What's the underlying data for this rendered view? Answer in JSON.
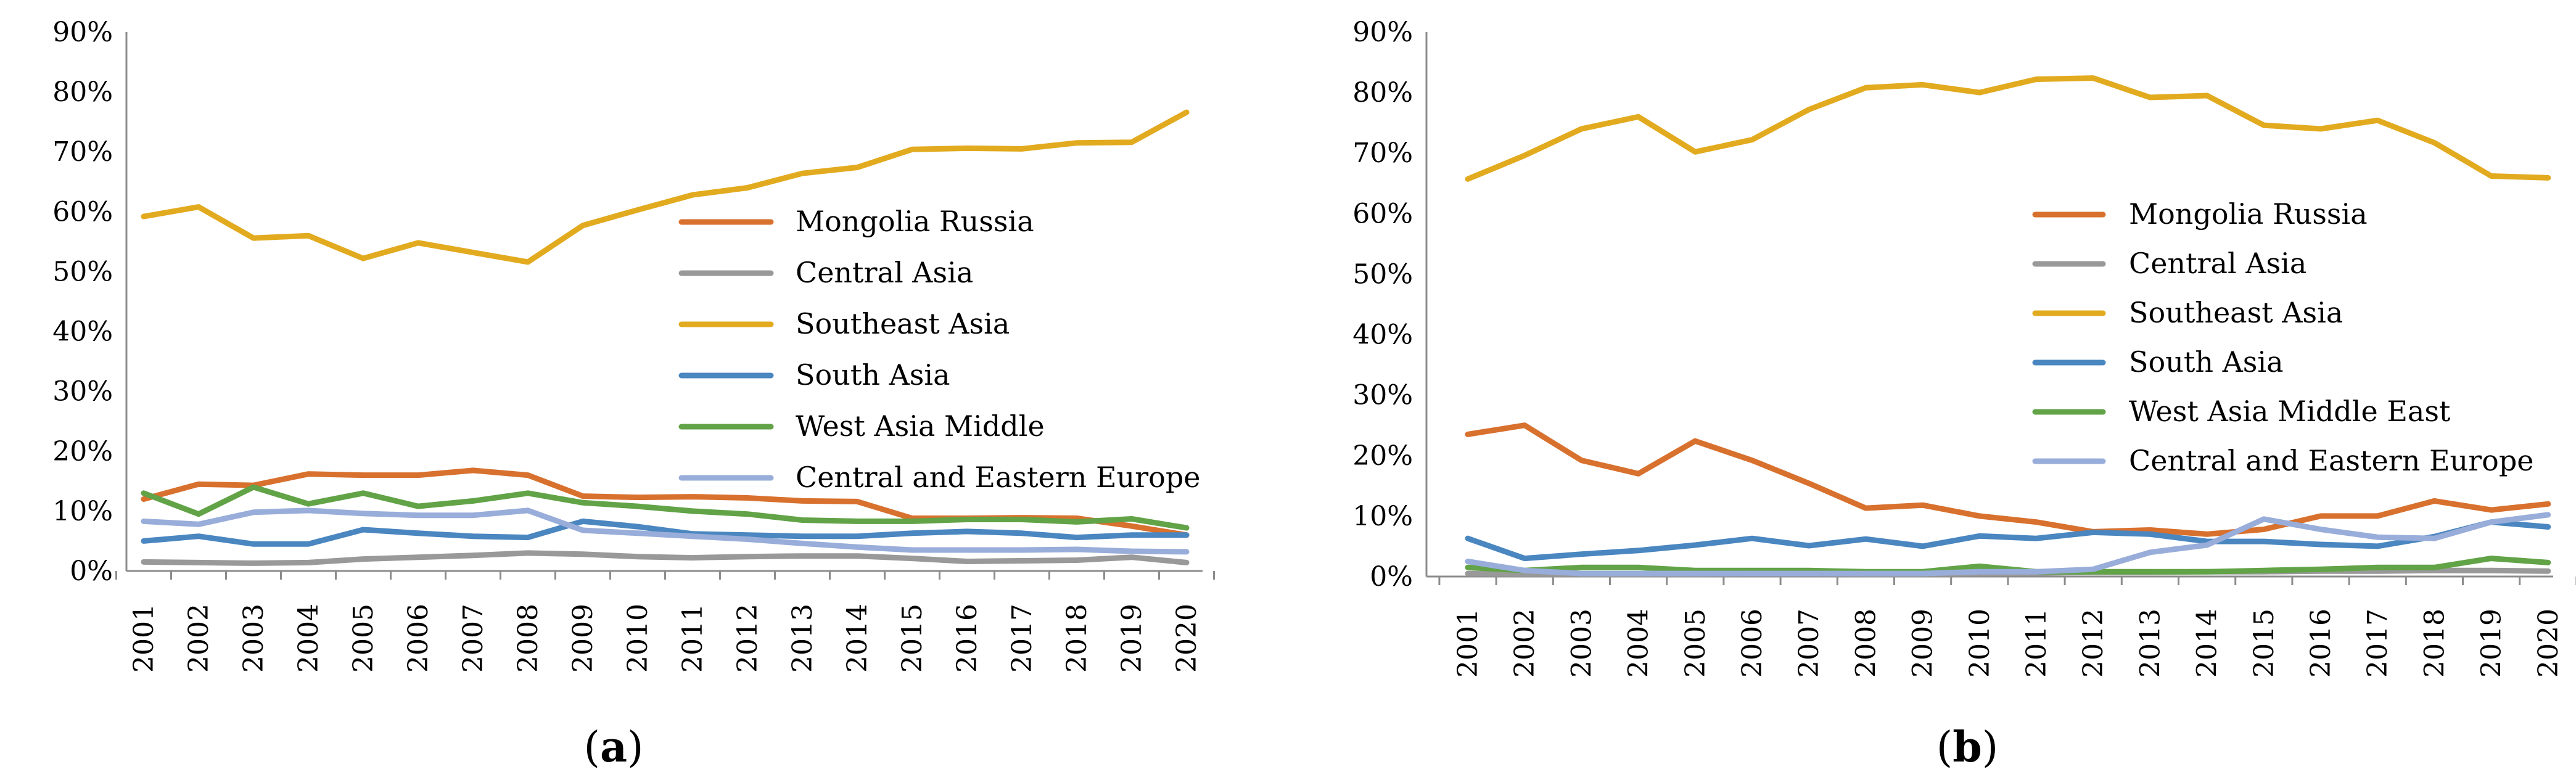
{
  "chart_data": [
    {
      "type": "line",
      "panel_label": "a",
      "categories": [
        "2001",
        "2002",
        "2003",
        "2004",
        "2005",
        "2006",
        "2007",
        "2008",
        "2009",
        "2010",
        "2011",
        "2012",
        "2013",
        "2014",
        "2015",
        "2016",
        "2017",
        "2018",
        "2019",
        "2020"
      ],
      "ylim": [
        0,
        90
      ],
      "yticks": [
        "0%",
        "10%",
        "20%",
        "30%",
        "40%",
        "50%",
        "60%",
        "70%",
        "80%",
        "90%"
      ],
      "legend_position": "center-right",
      "series": [
        {
          "name": "Mongolia Russia",
          "color": "#d8702e",
          "values": [
            12,
            14.5,
            14.3,
            16.2,
            16,
            16,
            16.8,
            16,
            12.5,
            12.3,
            12.4,
            12.2,
            11.7,
            11.6,
            8.8,
            8.8,
            8.9,
            8.8,
            7.5,
            6
          ]
        },
        {
          "name": "Central Asia",
          "color": "#999999",
          "values": [
            1.5,
            1.4,
            1.3,
            1.4,
            2,
            2.3,
            2.6,
            3,
            2.8,
            2.4,
            2.2,
            2.4,
            2.5,
            2.5,
            2.1,
            1.6,
            1.7,
            1.8,
            2.3,
            1.4
          ]
        },
        {
          "name": "Southeast Asia",
          "color": "#e2aa1e",
          "values": [
            59.2,
            60.8,
            55.6,
            56,
            52.2,
            54.8,
            53.2,
            51.6,
            57.7,
            60.3,
            62.8,
            64,
            66.4,
            67.4,
            70.4,
            70.6,
            70.5,
            71.5,
            71.6,
            76.6
          ]
        },
        {
          "name": "South Asia",
          "color": "#4a86c0",
          "values": [
            5,
            5.8,
            4.5,
            4.5,
            6.9,
            6.3,
            5.8,
            5.6,
            8.3,
            7.4,
            6.2,
            6,
            5.8,
            5.8,
            6.3,
            6.6,
            6.3,
            5.6,
            6,
            6
          ]
        },
        {
          "name": "West Asia Middle",
          "color": "#61a346",
          "values": [
            13,
            9.5,
            14,
            11.2,
            13,
            10.8,
            11.7,
            13,
            11.4,
            10.8,
            10,
            9.5,
            8.5,
            8.3,
            8.3,
            8.6,
            8.6,
            8.2,
            8.7,
            7.2
          ]
        },
        {
          "name": "Central and Eastern Europe",
          "color": "#98add9",
          "values": [
            8.3,
            7.8,
            9.8,
            10.1,
            9.6,
            9.3,
            9.3,
            10.1,
            6.8,
            6.3,
            5.8,
            5.3,
            4.6,
            4,
            3.5,
            3.5,
            3.5,
            3.6,
            3.3,
            3.2
          ]
        }
      ]
    },
    {
      "type": "line",
      "panel_label": "b",
      "categories": [
        "2001",
        "2002",
        "2003",
        "2004",
        "2005",
        "2006",
        "2007",
        "2008",
        "2009",
        "2010",
        "2011",
        "2012",
        "2013",
        "2014",
        "2015",
        "2016",
        "2017",
        "2018",
        "2019",
        "2020"
      ],
      "ylim": [
        0,
        90
      ],
      "yticks": [
        "0%",
        "10%",
        "20%",
        "30%",
        "40%",
        "50%",
        "60%",
        "70%",
        "80%",
        "90%"
      ],
      "legend_position": "center-right",
      "series": [
        {
          "name": "Mongolia Russia",
          "color": "#d8702e",
          "values": [
            23.5,
            25,
            19.2,
            17,
            22.4,
            19.2,
            15.4,
            11.3,
            11.8,
            10,
            9,
            7.4,
            7.7,
            7,
            7.8,
            10,
            10,
            12.5,
            11,
            12
          ]
        },
        {
          "name": "Central Asia",
          "color": "#999999",
          "values": [
            0.5,
            0.4,
            0.4,
            0.4,
            0.4,
            0.5,
            0.5,
            0.4,
            0.4,
            0.5,
            0.6,
            0.7,
            0.7,
            0.8,
            0.8,
            0.9,
            0.9,
            1,
            1,
            0.9
          ]
        },
        {
          "name": "Southeast Asia",
          "color": "#e2aa1e",
          "values": [
            65.7,
            69.6,
            74,
            76,
            70.2,
            72.2,
            77.2,
            80.8,
            81.3,
            80,
            82.2,
            82.4,
            79.2,
            79.5,
            74.6,
            74,
            75.4,
            71.7,
            66.2,
            65.9
          ]
        },
        {
          "name": "South Asia",
          "color": "#4a86c0",
          "values": [
            6.3,
            3,
            3.7,
            4.3,
            5.2,
            6.3,
            5.1,
            6.2,
            5,
            6.7,
            6.3,
            7.3,
            7,
            5.8,
            5.8,
            5.3,
            5,
            6.6,
            9,
            8.2
          ]
        },
        {
          "name": "West Asia Middle East",
          "color": "#61a346",
          "values": [
            1.5,
            1,
            1.5,
            1.5,
            1,
            1,
            1,
            0.8,
            0.8,
            1.7,
            0.8,
            0.8,
            0.8,
            0.8,
            1,
            1.2,
            1.5,
            1.5,
            3,
            2.3
          ]
        },
        {
          "name": "Central and Eastern Europe",
          "color": "#98add9",
          "values": [
            2.5,
            1,
            0.5,
            0.5,
            0.5,
            0.5,
            0.5,
            0.5,
            0.5,
            0.8,
            0.8,
            1.2,
            4,
            5.2,
            9.5,
            7.8,
            6.5,
            6.3,
            9,
            10.2
          ]
        }
      ]
    }
  ]
}
